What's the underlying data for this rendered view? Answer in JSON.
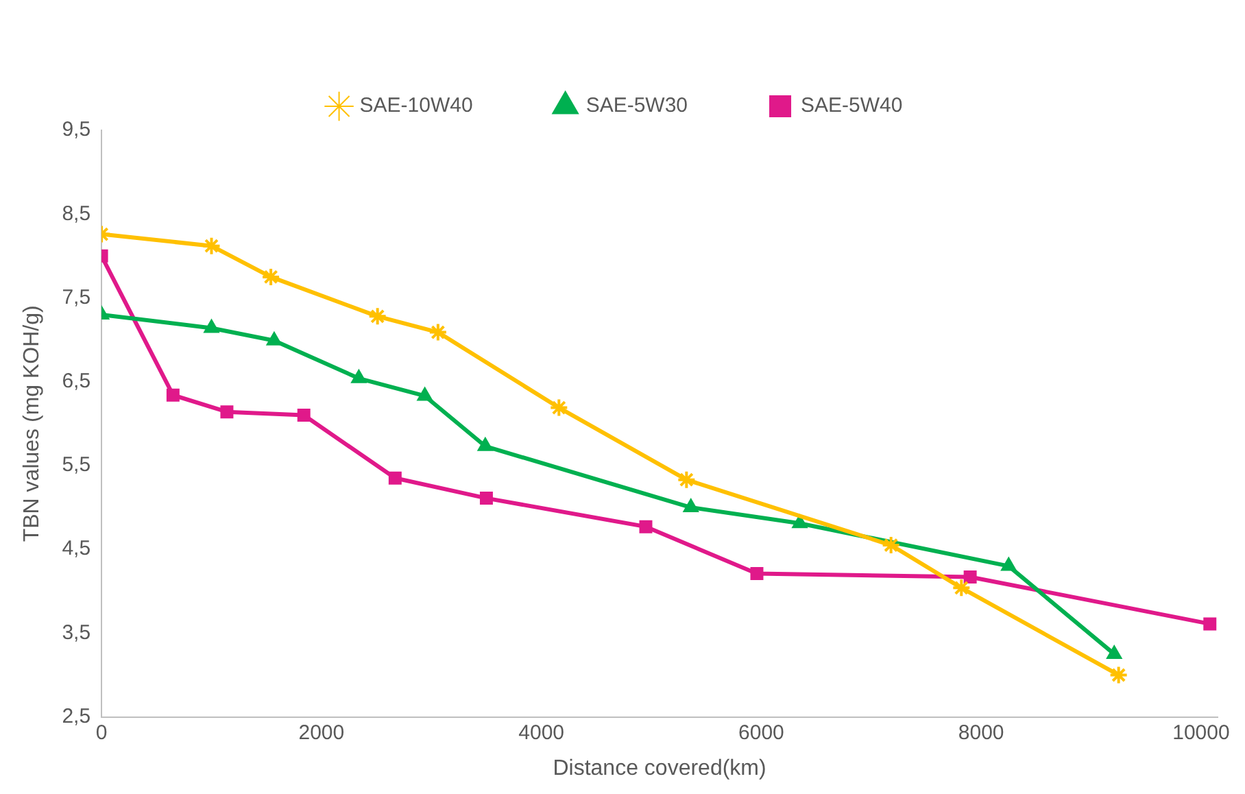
{
  "chart_data": {
    "type": "line",
    "xlabel": "Distance covered(km)",
    "ylabel": "TBN values (mg KOH/g)",
    "xlim": [
      0,
      10150
    ],
    "xticks": [
      0,
      2000,
      4000,
      6000,
      8000,
      10000
    ],
    "ylim": [
      2.5,
      9.5
    ],
    "yticks": [
      {
        "value": 2.5,
        "label": "2,5"
      },
      {
        "value": 3.5,
        "label": "3,5"
      },
      {
        "value": 4.5,
        "label": "4,5"
      },
      {
        "value": 5.5,
        "label": "5,5"
      },
      {
        "value": 6.5,
        "label": "6,5"
      },
      {
        "value": 7.5,
        "label": "7,5"
      },
      {
        "value": 8.5,
        "label": "8,5"
      },
      {
        "value": 9.5,
        "label": "9,5"
      }
    ],
    "grid": false,
    "legend": "top",
    "line_style": "solid",
    "series": [
      {
        "name": "SAE-10W40",
        "color": "#ffc000",
        "marker": "cross",
        "x": [
          0,
          1000,
          1540,
          2510,
          3060,
          4160,
          5320,
          7180,
          7820,
          9250
        ],
        "values": [
          8.26,
          8.12,
          7.75,
          7.28,
          7.09,
          6.19,
          5.33,
          4.55,
          4.04,
          3.0
        ]
      },
      {
        "name": "SAE-5W30",
        "color": "#00b050",
        "marker": "triangle",
        "x": [
          0,
          1000,
          1570,
          2340,
          2940,
          3490,
          5360,
          6350,
          8250,
          9210
        ],
        "values": [
          7.3,
          7.14,
          6.99,
          6.54,
          6.33,
          5.73,
          5.0,
          4.81,
          4.3,
          3.25
        ]
      },
      {
        "name": "SAE-5W40",
        "color": "#e0198a",
        "marker": "square",
        "x": [
          0,
          650,
          1140,
          1840,
          2670,
          3500,
          4950,
          5960,
          7900,
          10080
        ],
        "values": [
          8.0,
          6.34,
          6.14,
          6.1,
          5.35,
          5.11,
          4.77,
          4.21,
          4.17,
          3.61
        ]
      }
    ]
  }
}
